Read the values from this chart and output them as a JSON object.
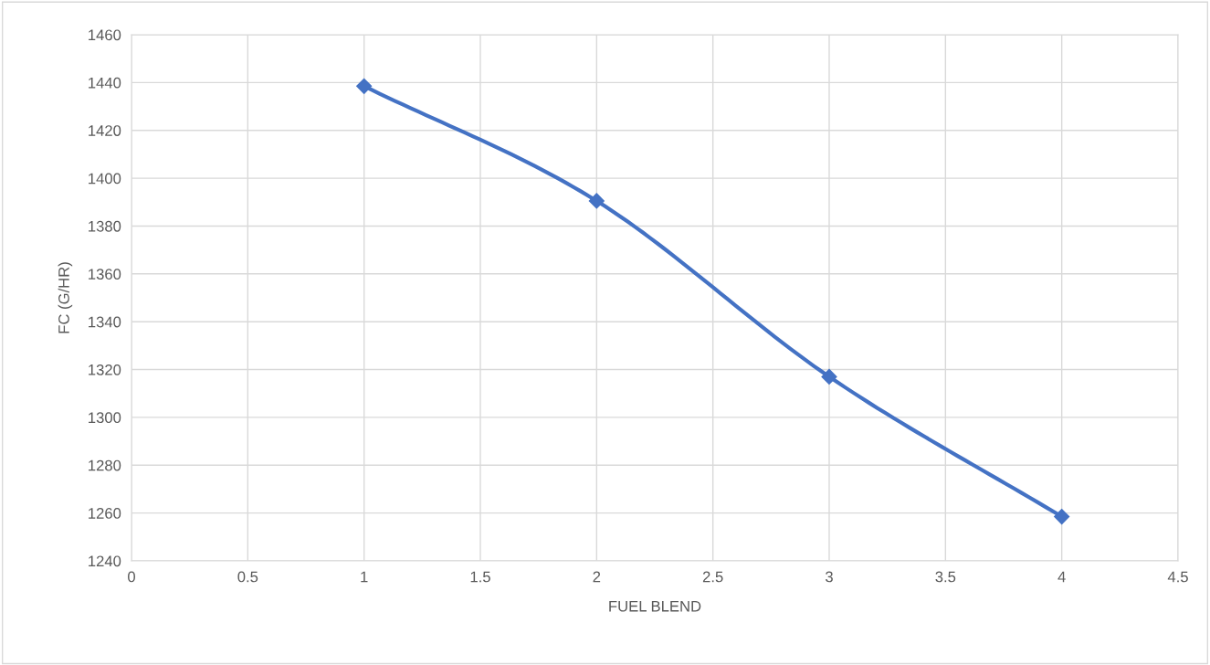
{
  "chart_data": {
    "type": "line",
    "xlabel": "FUEL BLEND",
    "ylabel": "FC (G/HR)",
    "x": [
      1,
      2,
      3,
      4
    ],
    "series": [
      {
        "color": "#4472c4",
        "values": [
          1438.5,
          1390.5,
          1317,
          1258.5
        ]
      }
    ],
    "xlim": [
      0,
      4.5
    ],
    "xticks": [
      0,
      0.5,
      1,
      1.5,
      2,
      2.5,
      3,
      3.5,
      4,
      4.5
    ],
    "ylim": [
      1240,
      1460
    ],
    "yticks": [
      1240,
      1260,
      1280,
      1300,
      1320,
      1340,
      1360,
      1380,
      1400,
      1420,
      1440,
      1460
    ],
    "grid": true,
    "marker": "diamond",
    "line_style": "solid",
    "legend": false
  }
}
